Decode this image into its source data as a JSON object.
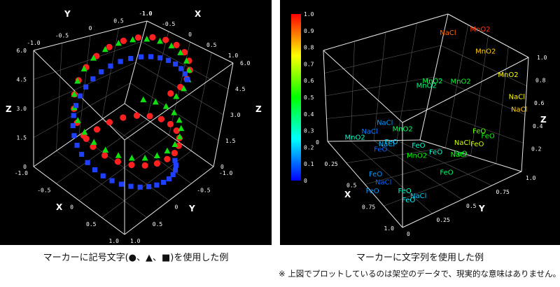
{
  "captions": {
    "left": "マーカーに記号文字(●、▲、■)を使用した例",
    "right": "マーカーに文字列を使用した例",
    "note": "※ 上図でプロットしているのは架空のデータで、現実的な意味はありません。"
  },
  "chart_data": [
    {
      "type": "scatter",
      "axes": {
        "x": "X",
        "y": "Y",
        "z": "Z"
      },
      "xlim": [
        -1.0,
        1.0
      ],
      "ylim": [
        -1.0,
        1.0
      ],
      "zlim": [
        0,
        6.0
      ],
      "x_ticks": [
        "-1.0",
        "-0.5",
        "0",
        "0.5",
        "1.0"
      ],
      "y_ticks": [
        "-1.0",
        "-0.5",
        "0",
        "0.5",
        "1.0"
      ],
      "z_ticks": [
        "0",
        "1.5",
        "3.0",
        "4.5",
        "6.0"
      ],
      "grid": true,
      "marker_symbols": [
        "●",
        "▲",
        "■"
      ],
      "series": [
        {
          "marker": "●",
          "color": "#ff2020",
          "shape": "helix",
          "z_start": 0.0,
          "z_end": 6.0,
          "turns": 1.5,
          "points": 38
        },
        {
          "marker": "▲",
          "color": "#10e010",
          "shape": "helix",
          "z_start": 1.5,
          "z_end": 5.5,
          "turns": 1.3,
          "points": 34
        },
        {
          "marker": "■",
          "color": "#2040ff",
          "shape": "helix",
          "z_start": 0.0,
          "z_end": 4.5,
          "turns": 1.0,
          "points": 36
        }
      ]
    },
    {
      "type": "scatter",
      "axes": {
        "x": "X",
        "y": "Y",
        "z": "Z"
      },
      "xlim": [
        0,
        1.0
      ],
      "ylim": [
        0,
        1.0
      ],
      "zlim": [
        0,
        1.0
      ],
      "x_ticks": [
        "0",
        "0.25",
        "0.5",
        "0.75",
        "1.0"
      ],
      "y_ticks": [
        "0",
        "0.25",
        "0.5",
        "0.75",
        "1.0"
      ],
      "z_ticks": [
        "0.2",
        "0.4",
        "0.6",
        "0.8",
        "1.0"
      ],
      "grid": true,
      "colorbar": {
        "ticks": [
          "1.0",
          "0.9",
          "0.8",
          "0.7",
          "0.6",
          "0.5",
          "0.4",
          "0.3",
          "0.2",
          "0.1",
          "0"
        ],
        "colors": [
          "#ff0000",
          "#ffff00",
          "#00ff00",
          "#00ffff",
          "#0000ff"
        ]
      },
      "points": [
        {
          "label": "MnO2",
          "x": 0.0,
          "y": 0.4,
          "z": 1.0,
          "c": 0.95
        },
        {
          "label": "MnO2",
          "x": 0.0,
          "y": 0.5,
          "z": 0.85,
          "c": 0.8
        },
        {
          "label": "MnO2",
          "x": 0.05,
          "y": 0.85,
          "z": 0.8,
          "c": 0.75
        },
        {
          "label": "NaCl",
          "x": 0.0,
          "y": 0.05,
          "z": 0.85,
          "c": 0.9
        },
        {
          "label": "NaCl",
          "x": 0.0,
          "y": 0.9,
          "z": 0.6,
          "c": 0.75
        },
        {
          "label": "NaCl",
          "x": 0.05,
          "y": 1.0,
          "z": 0.55,
          "c": 0.8
        },
        {
          "label": "MnO2",
          "x": 0.1,
          "y": 0.4,
          "z": 0.6,
          "c": 0.45
        },
        {
          "label": "FeO",
          "x": 0.3,
          "y": 0.9,
          "z": 0.45,
          "c": 0.6
        },
        {
          "label": "FeO",
          "x": 0.35,
          "y": 0.95,
          "z": 0.38,
          "c": 0.7
        },
        {
          "label": "FeO",
          "x": 0.3,
          "y": 1.0,
          "z": 0.45,
          "c": 0.5
        },
        {
          "label": "NaCl",
          "x": 0.4,
          "y": 0.85,
          "z": 0.37,
          "c": 0.7
        },
        {
          "label": "FeO",
          "x": 0.45,
          "y": 0.9,
          "z": 0.32,
          "c": 0.45
        },
        {
          "label": "NaCl",
          "x": 0.45,
          "y": 0.88,
          "z": 0.3,
          "c": 0.5
        },
        {
          "label": "MnO2",
          "x": 0.0,
          "y": 0.0,
          "z": 0.45,
          "c": 0.42
        },
        {
          "label": "MnO2",
          "x": 0.05,
          "y": 0.0,
          "z": 0.42,
          "c": 0.38
        },
        {
          "label": "FeO",
          "x": 0.6,
          "y": 0.95,
          "z": 0.25,
          "c": 0.4
        },
        {
          "label": "FeO",
          "x": 0.55,
          "y": 0.75,
          "z": 0.3,
          "c": 0.3
        },
        {
          "label": "MnO2",
          "x": 0.5,
          "y": 0.3,
          "z": 0.25,
          "c": 0.4
        },
        {
          "label": "FeO",
          "x": 0.55,
          "y": 0.55,
          "z": 0.25,
          "c": 0.3
        },
        {
          "label": "MnO2",
          "x": 0.6,
          "y": 0.6,
          "z": 0.2,
          "c": 0.5
        },
        {
          "label": "NaCl",
          "x": 0.5,
          "y": 0.1,
          "z": 0.2,
          "c": 0.15
        },
        {
          "label": "FeO",
          "x": 0.6,
          "y": 0.3,
          "z": 0.15,
          "c": 0.22
        },
        {
          "label": "NaCl",
          "x": 0.6,
          "y": 0.25,
          "z": 0.1,
          "c": 0.18
        },
        {
          "label": "FeO",
          "x": 0.7,
          "y": 0.3,
          "z": 0.1,
          "c": 0.1
        },
        {
          "label": "NaCl",
          "x": 0.6,
          "y": 0.05,
          "z": 0.1,
          "c": 0.12
        },
        {
          "label": "FeO",
          "x": 0.85,
          "y": 0.8,
          "z": 0.1,
          "c": 0.3
        },
        {
          "label": "NaCl",
          "x": 0.8,
          "y": 0.9,
          "z": 0.1,
          "c": 0.2
        },
        {
          "label": "FeO",
          "x": 0.85,
          "y": 0.85,
          "z": 0.05,
          "c": 0.25
        },
        {
          "label": "MnO2",
          "x": 0.75,
          "y": 0.05,
          "z": 0.05,
          "c": 0.3
        },
        {
          "label": "FeO",
          "x": 0.9,
          "y": 0.5,
          "z": 0.05,
          "c": 0.15
        },
        {
          "label": "NaCl",
          "x": 0.9,
          "y": 0.6,
          "z": 0.05,
          "c": 0.1
        },
        {
          "label": "FeO",
          "x": 1.0,
          "y": 0.6,
          "z": 0.0,
          "c": 0.15
        }
      ]
    }
  ]
}
